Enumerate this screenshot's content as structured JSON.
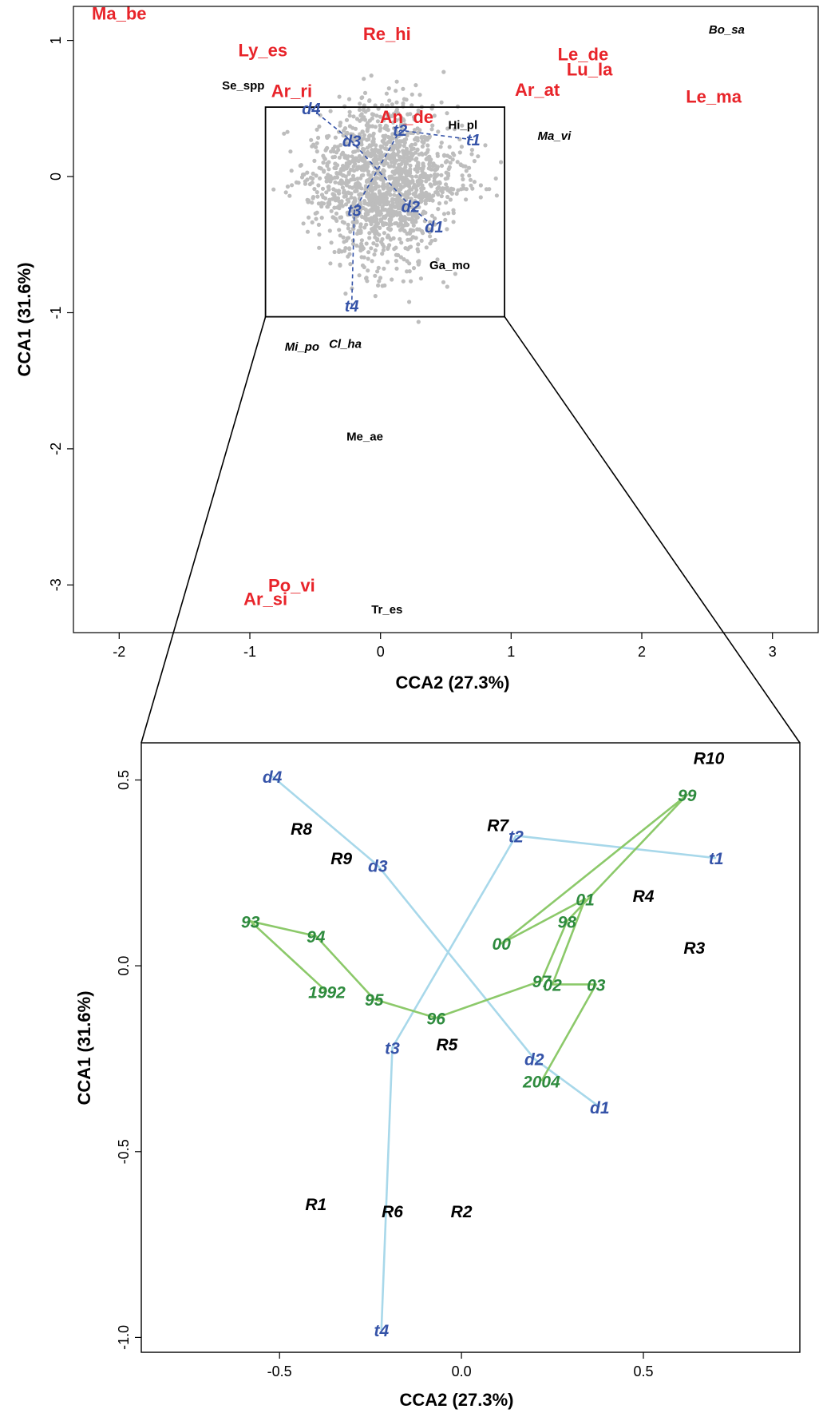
{
  "chart_data": [
    {
      "type": "scatter",
      "panel": "top",
      "xlabel": "CCA2 (27.3%)",
      "ylabel": "CCA1 (31.6%)",
      "xlim": [
        -2.35,
        3.35
      ],
      "ylim": [
        -3.35,
        1.25
      ],
      "xticks": [
        "-2",
        "-1",
        "0",
        "1",
        "2",
        "3"
      ],
      "yticks": [
        "-3",
        "-2",
        "-1",
        "0",
        "1"
      ],
      "xtick_values": [
        -2,
        -1,
        0,
        1,
        2,
        3
      ],
      "ytick_values": [
        -3,
        -2,
        -1,
        0,
        1
      ],
      "grid": false,
      "site_points": {
        "color": "#bdbdbd",
        "description_count": 1500,
        "x_center": 0.05,
        "y_center": -0.05
      },
      "species_red": [
        {
          "label": "Ma_be",
          "x": -2.0,
          "y": 1.2
        },
        {
          "label": "Ly_es",
          "x": -0.9,
          "y": 0.93
        },
        {
          "label": "Re_hi",
          "x": 0.05,
          "y": 1.05
        },
        {
          "label": "Le_de",
          "x": 1.55,
          "y": 0.9
        },
        {
          "label": "Lu_la",
          "x": 1.6,
          "y": 0.79
        },
        {
          "label": "Ar_at",
          "x": 1.2,
          "y": 0.64
        },
        {
          "label": "Le_ma",
          "x": 2.55,
          "y": 0.59
        },
        {
          "label": "Ar_ri",
          "x": -0.68,
          "y": 0.63
        },
        {
          "label": "An_de",
          "x": 0.2,
          "y": 0.44
        },
        {
          "label": "Po_vi",
          "x": -0.68,
          "y": -3.0
        },
        {
          "label": "Ar_si",
          "x": -0.88,
          "y": -3.1
        }
      ],
      "species_black": [
        {
          "label": "Se_spp",
          "x": -1.05,
          "y": 0.67,
          "italic": false
        },
        {
          "label": "Hi_pl",
          "x": 0.63,
          "y": 0.38,
          "italic": false
        },
        {
          "label": "Ma_vi",
          "x": 1.33,
          "y": 0.3,
          "italic": true
        },
        {
          "label": "Bo_sa",
          "x": 2.65,
          "y": 1.08,
          "italic": true
        },
        {
          "label": "Ga_mo",
          "x": 0.53,
          "y": -0.65,
          "italic": false
        },
        {
          "label": "Mi_po",
          "x": -0.6,
          "y": -1.25,
          "italic": true
        },
        {
          "label": "Cl_ha",
          "x": -0.27,
          "y": -1.23,
          "italic": true
        },
        {
          "label": "Me_ae",
          "x": -0.12,
          "y": -1.91,
          "italic": false
        },
        {
          "label": "Tr_es",
          "x": 0.05,
          "y": -3.18,
          "italic": false
        }
      ],
      "treatments": [
        {
          "label": "d4",
          "x": -0.53,
          "y": 0.5
        },
        {
          "label": "d3",
          "x": -0.22,
          "y": 0.26
        },
        {
          "label": "d2",
          "x": 0.23,
          "y": -0.22
        },
        {
          "label": "d1",
          "x": 0.41,
          "y": -0.37
        },
        {
          "label": "t1",
          "x": 0.71,
          "y": 0.27
        },
        {
          "label": "t2",
          "x": 0.15,
          "y": 0.34
        },
        {
          "label": "t3",
          "x": -0.2,
          "y": -0.25
        },
        {
          "label": "t4",
          "x": -0.22,
          "y": -0.95
        }
      ],
      "treatment_lines": [
        [
          "d4",
          "d3",
          "d2",
          "d1"
        ],
        [
          "t1",
          "t2",
          "t3",
          "t4"
        ]
      ],
      "zoom_box": {
        "x": [
          -0.88,
          0.95
        ],
        "y": [
          -1.03,
          0.51
        ]
      }
    },
    {
      "type": "scatter",
      "panel": "bottom",
      "xlabel": "CCA2 (27.3%)",
      "ylabel": "CCA1 (31.6%)",
      "xlim": [
        -0.88,
        0.93
      ],
      "ylim": [
        -1.04,
        0.6
      ],
      "xticks": [
        "-0.5",
        "0.0",
        "0.5"
      ],
      "yticks": [
        "-1.0",
        "-0.5",
        "0.0",
        "0.5"
      ],
      "xtick_values": [
        -0.5,
        0.0,
        0.5
      ],
      "ytick_values": [
        -1.0,
        -0.5,
        0.0,
        0.5
      ],
      "grid": false,
      "treatment_series": [
        {
          "name": "d",
          "color": "#a8d8ea",
          "points": [
            {
              "label": "d4",
              "x": -0.52,
              "y": 0.51
            },
            {
              "label": "d3",
              "x": -0.23,
              "y": 0.27
            },
            {
              "label": "d2",
              "x": 0.2,
              "y": -0.25
            },
            {
              "label": "d1",
              "x": 0.38,
              "y": -0.38
            }
          ]
        },
        {
          "name": "t",
          "color": "#a8d8ea",
          "points": [
            {
              "label": "t1",
              "x": 0.7,
              "y": 0.29
            },
            {
              "label": "t2",
              "x": 0.15,
              "y": 0.35
            },
            {
              "label": "t3",
              "x": -0.19,
              "y": -0.22
            },
            {
              "label": "t4",
              "x": -0.22,
              "y": -0.98
            }
          ]
        }
      ],
      "year_series": {
        "color": "#8cc96a",
        "points": [
          {
            "label": "1992",
            "x": -0.37,
            "y": -0.07
          },
          {
            "label": "93",
            "x": -0.58,
            "y": 0.12
          },
          {
            "label": "94",
            "x": -0.4,
            "y": 0.08
          },
          {
            "label": "95",
            "x": -0.24,
            "y": -0.09
          },
          {
            "label": "96",
            "x": -0.07,
            "y": -0.14
          },
          {
            "label": "97",
            "x": 0.22,
            "y": -0.04
          },
          {
            "label": "98",
            "x": 0.29,
            "y": 0.12
          },
          {
            "label": "99",
            "x": 0.62,
            "y": 0.46
          },
          {
            "label": "00",
            "x": 0.11,
            "y": 0.06
          },
          {
            "label": "01",
            "x": 0.34,
            "y": 0.18
          },
          {
            "label": "02",
            "x": 0.25,
            "y": -0.05
          },
          {
            "label": "03",
            "x": 0.37,
            "y": -0.05
          },
          {
            "label": "2004",
            "x": 0.22,
            "y": -0.31
          }
        ],
        "path": [
          "1992",
          "93",
          "94",
          "95",
          "96",
          "97",
          "98",
          "99",
          "00",
          "01",
          "02",
          "03",
          "2004"
        ]
      },
      "replicates": [
        {
          "label": "R1",
          "x": -0.4,
          "y": -0.64
        },
        {
          "label": "R2",
          "x": 0.0,
          "y": -0.66
        },
        {
          "label": "R3",
          "x": 0.64,
          "y": 0.05
        },
        {
          "label": "R4",
          "x": 0.5,
          "y": 0.19
        },
        {
          "label": "R5",
          "x": -0.04,
          "y": -0.21
        },
        {
          "label": "R6",
          "x": -0.19,
          "y": -0.66
        },
        {
          "label": "R7",
          "x": 0.1,
          "y": 0.38
        },
        {
          "label": "R8",
          "x": -0.44,
          "y": 0.37
        },
        {
          "label": "R9",
          "x": -0.33,
          "y": 0.29
        },
        {
          "label": "R10",
          "x": 0.68,
          "y": 0.56
        }
      ]
    }
  ]
}
